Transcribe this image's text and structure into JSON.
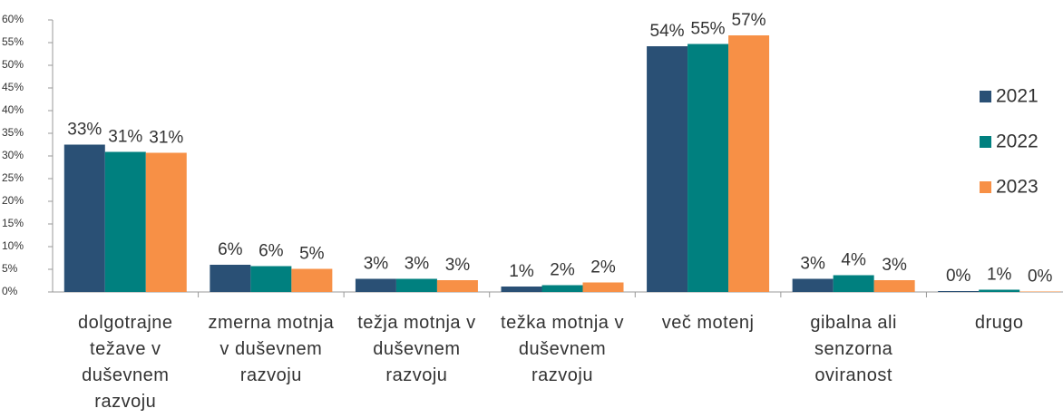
{
  "chart_data": {
    "type": "bar",
    "categories": [
      "dolgotrajne težave v duševnem razvoju",
      "zmerna motnja v duševnem razvoju",
      "težja motnja v duševnem razvoju",
      "težka motnja v duševnem razvoju",
      "več motenj",
      "gibalna ali senzorna oviranost",
      "drugo"
    ],
    "series": [
      {
        "name": "2021",
        "color": "#2a5075",
        "values": [
          32.5,
          6,
          2.9,
          1.2,
          54.2,
          2.9,
          0.2
        ],
        "value_labels": [
          "33%",
          "6%",
          "3%",
          "1%",
          "54%",
          "3%",
          "0%"
        ]
      },
      {
        "name": "2022",
        "color": "#00807f",
        "values": [
          30.9,
          5.7,
          2.9,
          1.5,
          54.7,
          3.7,
          0.5
        ],
        "value_labels": [
          "31%",
          "6%",
          "3%",
          "2%",
          "55%",
          "4%",
          "1%"
        ]
      },
      {
        "name": "2023",
        "color": "#f79046",
        "values": [
          30.7,
          5.1,
          2.6,
          2.1,
          56.6,
          2.6,
          0.1
        ],
        "value_labels": [
          "31%",
          "5%",
          "3%",
          "2%",
          "57%",
          "3%",
          "0%"
        ]
      }
    ],
    "ylim": [
      0,
      60
    ],
    "yticks": [
      {
        "value": 0,
        "label": "0%"
      },
      {
        "value": 5,
        "label": "5%"
      },
      {
        "value": 10,
        "label": "10%"
      },
      {
        "value": 15,
        "label": "15%"
      },
      {
        "value": 20,
        "label": "20%"
      },
      {
        "value": 25,
        "label": "25%"
      },
      {
        "value": 30,
        "label": "30%"
      },
      {
        "value": 35,
        "label": "35%"
      },
      {
        "value": 40,
        "label": "40%"
      },
      {
        "value": 45,
        "label": "45%"
      },
      {
        "value": 50,
        "label": "50%"
      },
      {
        "value": 55,
        "label": "55%"
      },
      {
        "value": 60,
        "label": "60%"
      }
    ],
    "grid": false,
    "legend": "right"
  }
}
